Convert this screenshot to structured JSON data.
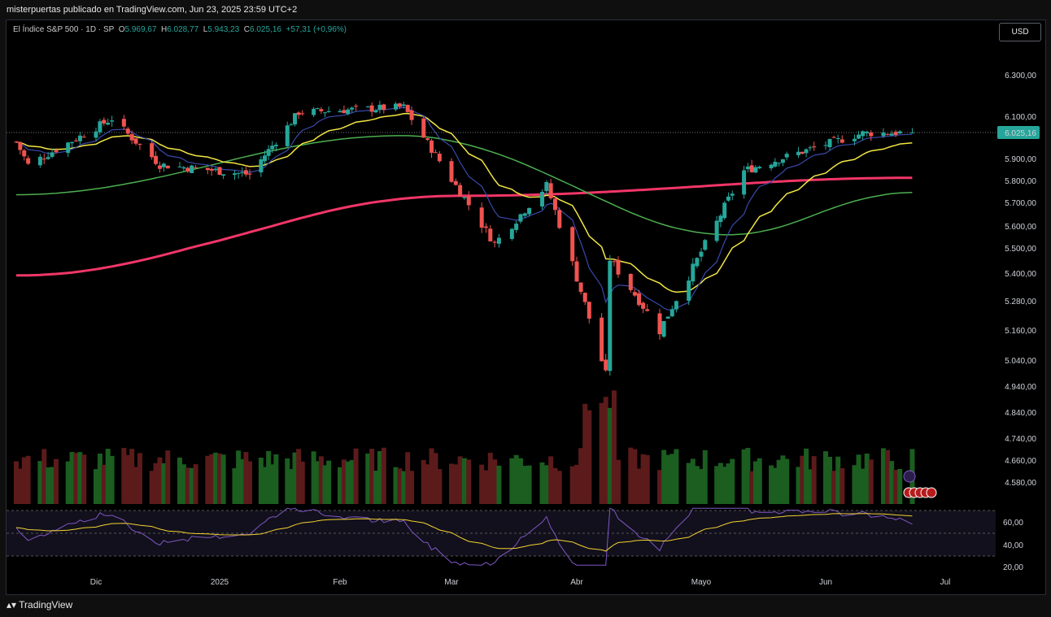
{
  "header": {
    "publisher_line": "misterpuertas publicado en TradingView.com, Jun 23, 2025 23:59 UTC+2"
  },
  "legend": {
    "symbol": "El Índice S&P 500 · 1D · SP",
    "open_label": "O",
    "open": "5.969,67",
    "high_label": "H",
    "high": "6.028,77",
    "low_label": "L",
    "low": "5.943,23",
    "close_label": "C",
    "close": "6.025,16",
    "change": "+57,31 (+0,96%)"
  },
  "currency_button": "USD",
  "last_price_tag": "6.025,16",
  "footer": {
    "logo_text": "TradingView"
  },
  "colors": {
    "up": "#26a69a",
    "down": "#ef5350",
    "sma200": "#f23668",
    "ema50": "#4caf50",
    "ema20": "#f2e644",
    "ema9": "#3949ab",
    "rsi": "#7e57c2",
    "rsi_ma": "#f2d133",
    "vol_up": "#1b5e20",
    "vol_down": "#5c1b1b"
  },
  "chart_data": {
    "type": "candlestick",
    "title": "El Índice S&P 500 · 1D · SP",
    "price_ticks": [
      "6.300,00",
      "6.100,00",
      "6.025,16",
      "5.900,00",
      "5.800,00",
      "5.700,00",
      "5.600,00",
      "5.500,00",
      "5.400,00",
      "5.280,00",
      "5.160,00",
      "5.040,00",
      "4.940,00",
      "4.840,00",
      "4.740,00",
      "4.660,00",
      "4.580,00"
    ],
    "price_tick_values": [
      6300,
      6100,
      6025.16,
      5900,
      5800,
      5700,
      5600,
      5500,
      5400,
      5280,
      5160,
      5040,
      4940,
      4840,
      4740,
      4660,
      4580
    ],
    "rsi_ticks": [
      "60,00",
      "40,00",
      "20,00"
    ],
    "rsi_tick_values": [
      60,
      40,
      20
    ],
    "x_ticks": [
      "Dic",
      "2025",
      "Feb",
      "Mar",
      "Abr",
      "Mayo",
      "Jun",
      "Jul"
    ],
    "x_tick_dates": [
      "2024-12-02",
      "2025-01-02",
      "2025-02-03",
      "2025-03-03",
      "2025-04-01",
      "2025-05-01",
      "2025-06-02",
      "2025-07-01"
    ],
    "date_range": [
      "2024-11-12",
      "2025-06-23"
    ],
    "last_close": 6025.16,
    "key_closes": [
      {
        "date": "2024-11-12",
        "close": 5980
      },
      {
        "date": "2024-11-15",
        "close": 5870
      },
      {
        "date": "2024-12-06",
        "close": 6090
      },
      {
        "date": "2024-12-18",
        "close": 5872
      },
      {
        "date": "2025-01-10",
        "close": 5827
      },
      {
        "date": "2025-01-23",
        "close": 6119
      },
      {
        "date": "2025-02-19",
        "close": 6144
      },
      {
        "date": "2025-03-13",
        "close": 5521
      },
      {
        "date": "2025-03-25",
        "close": 5777
      },
      {
        "date": "2025-04-08",
        "close": 4982
      },
      {
        "date": "2025-04-09",
        "close": 5457
      },
      {
        "date": "2025-04-21",
        "close": 5158
      },
      {
        "date": "2025-05-12",
        "close": 5844
      },
      {
        "date": "2025-06-11",
        "close": 6022
      },
      {
        "date": "2025-06-23",
        "close": 6025.16
      }
    ],
    "sma200_endpoints": [
      {
        "date": "2024-11-12",
        "value": 5390
      },
      {
        "date": "2025-03-05",
        "value": 5730
      },
      {
        "date": "2025-06-23",
        "value": 5812
      }
    ],
    "ema50_endpoints": [
      {
        "date": "2024-11-12",
        "value": 5735
      },
      {
        "date": "2025-02-19",
        "value": 6010
      },
      {
        "date": "2025-05-08",
        "value": 5560
      },
      {
        "date": "2025-06-23",
        "value": 5745
      }
    ],
    "rsi_last": 58,
    "grid": false,
    "legend_position": "top-left"
  }
}
